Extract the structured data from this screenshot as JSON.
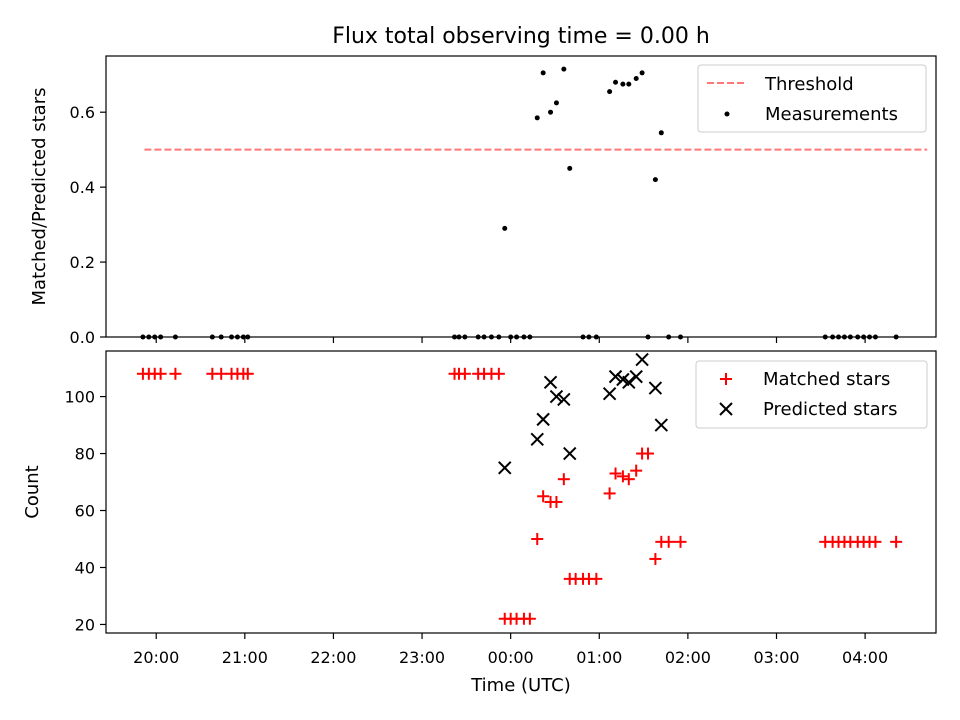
{
  "chart_data": [
    {
      "type": "scatter",
      "title": "Flux total observing time = 0.00 h",
      "xlabel": "",
      "ylabel": "Matched/Predicted stars",
      "xlim": [
        "19:26",
        "04:48"
      ],
      "ylim": [
        0,
        0.75
      ],
      "x_ticks": [
        "20:00",
        "21:00",
        "22:00",
        "23:00",
        "00:00",
        "01:00",
        "02:00",
        "03:00",
        "04:00"
      ],
      "y_ticks": [
        "0.0",
        "0.2",
        "0.4",
        "0.6"
      ],
      "legend_position": "top-right",
      "grid": false,
      "threshold": {
        "name": "Threshold",
        "value": 0.5,
        "x_start": "19:52",
        "x_end": "04:42",
        "color": "#ff7777",
        "style": "dashed"
      },
      "series": [
        {
          "name": "Measurements",
          "marker": "dot",
          "color": "#000000",
          "points": [
            [
              "19:51",
              0
            ],
            [
              "19:55",
              0
            ],
            [
              "19:59",
              0
            ],
            [
              "20:03",
              0
            ],
            [
              "20:13",
              0
            ],
            [
              "20:38",
              0
            ],
            [
              "20:44",
              0
            ],
            [
              "20:51",
              0
            ],
            [
              "20:55",
              0
            ],
            [
              "20:59",
              0
            ],
            [
              "21:02",
              0
            ],
            [
              "23:22",
              0
            ],
            [
              "23:25",
              0
            ],
            [
              "23:29",
              0
            ],
            [
              "23:38",
              0
            ],
            [
              "23:42",
              0
            ],
            [
              "23:47",
              0
            ],
            [
              "23:52",
              0
            ],
            [
              "23:56",
              0.29
            ],
            [
              "00:00",
              0
            ],
            [
              "00:04",
              0
            ],
            [
              "00:09",
              0
            ],
            [
              "00:13",
              0
            ],
            [
              "00:18",
              0.585
            ],
            [
              "00:22",
              0.705
            ],
            [
              "00:27",
              0.6
            ],
            [
              "00:31",
              0.625
            ],
            [
              "00:36",
              0.715
            ],
            [
              "00:40",
              0.45
            ],
            [
              "00:49",
              0
            ],
            [
              "00:53",
              0
            ],
            [
              "00:58",
              0
            ],
            [
              "01:07",
              0.655
            ],
            [
              "01:11",
              0.68
            ],
            [
              "01:16",
              0.675
            ],
            [
              "01:20",
              0.675
            ],
            [
              "01:25",
              0.69
            ],
            [
              "01:29",
              0.705
            ],
            [
              "01:33",
              0
            ],
            [
              "01:38",
              0.42
            ],
            [
              "01:42",
              0.545
            ],
            [
              "01:47",
              0
            ],
            [
              "01:55",
              0
            ],
            [
              "03:33",
              0
            ],
            [
              "03:38",
              0
            ],
            [
              "03:42",
              0
            ],
            [
              "03:46",
              0
            ],
            [
              "03:50",
              0
            ],
            [
              "03:55",
              0
            ],
            [
              "03:59",
              0
            ],
            [
              "04:03",
              0
            ],
            [
              "04:07",
              0
            ],
            [
              "04:21",
              0
            ]
          ]
        }
      ]
    },
    {
      "type": "scatter",
      "title": "",
      "xlabel": "Time (UTC)",
      "ylabel": "Count",
      "xlim": [
        "19:26",
        "04:48"
      ],
      "ylim": [
        17,
        116
      ],
      "x_ticks": [
        "20:00",
        "21:00",
        "22:00",
        "23:00",
        "00:00",
        "01:00",
        "02:00",
        "03:00",
        "04:00"
      ],
      "y_ticks": [
        "20",
        "40",
        "60",
        "80",
        "100"
      ],
      "legend_position": "top-right",
      "grid": false,
      "series": [
        {
          "name": "Matched stars",
          "marker": "plus",
          "color": "#ff0000",
          "points": [
            [
              "19:51",
              108
            ],
            [
              "19:55",
              108
            ],
            [
              "19:59",
              108
            ],
            [
              "20:03",
              108
            ],
            [
              "20:13",
              108
            ],
            [
              "20:38",
              108
            ],
            [
              "20:44",
              108
            ],
            [
              "20:51",
              108
            ],
            [
              "20:55",
              108
            ],
            [
              "20:59",
              108
            ],
            [
              "21:02",
              108
            ],
            [
              "23:22",
              108
            ],
            [
              "23:25",
              108
            ],
            [
              "23:29",
              108
            ],
            [
              "23:38",
              108
            ],
            [
              "23:42",
              108
            ],
            [
              "23:47",
              108
            ],
            [
              "23:52",
              108
            ],
            [
              "23:56",
              22
            ],
            [
              "00:00",
              22
            ],
            [
              "00:04",
              22
            ],
            [
              "00:09",
              22
            ],
            [
              "00:13",
              22
            ],
            [
              "00:18",
              50
            ],
            [
              "00:22",
              65
            ],
            [
              "00:27",
              63
            ],
            [
              "00:31",
              63
            ],
            [
              "00:36",
              71
            ],
            [
              "00:40",
              36
            ],
            [
              "00:44",
              36
            ],
            [
              "00:49",
              36
            ],
            [
              "00:53",
              36
            ],
            [
              "00:58",
              36
            ],
            [
              "01:07",
              66
            ],
            [
              "01:11",
              73
            ],
            [
              "01:16",
              72
            ],
            [
              "01:20",
              71
            ],
            [
              "01:25",
              74
            ],
            [
              "01:29",
              80
            ],
            [
              "01:33",
              80
            ],
            [
              "01:38",
              43
            ],
            [
              "01:42",
              49
            ],
            [
              "01:47",
              49
            ],
            [
              "01:55",
              49
            ],
            [
              "03:33",
              49
            ],
            [
              "03:38",
              49
            ],
            [
              "03:42",
              49
            ],
            [
              "03:46",
              49
            ],
            [
              "03:50",
              49
            ],
            [
              "03:55",
              49
            ],
            [
              "03:59",
              49
            ],
            [
              "04:03",
              49
            ],
            [
              "04:07",
              49
            ],
            [
              "04:21",
              49
            ]
          ]
        },
        {
          "name": "Predicted stars",
          "marker": "x",
          "color": "#000000",
          "points": [
            [
              "23:56",
              75
            ],
            [
              "00:18",
              85
            ],
            [
              "00:22",
              92
            ],
            [
              "00:27",
              105
            ],
            [
              "00:31",
              100
            ],
            [
              "00:36",
              99
            ],
            [
              "00:40",
              80
            ],
            [
              "01:07",
              101
            ],
            [
              "01:11",
              107
            ],
            [
              "01:16",
              106
            ],
            [
              "01:20",
              105
            ],
            [
              "01:25",
              107
            ],
            [
              "01:29",
              113
            ],
            [
              "01:38",
              103
            ],
            [
              "01:42",
              90
            ]
          ]
        }
      ]
    }
  ]
}
